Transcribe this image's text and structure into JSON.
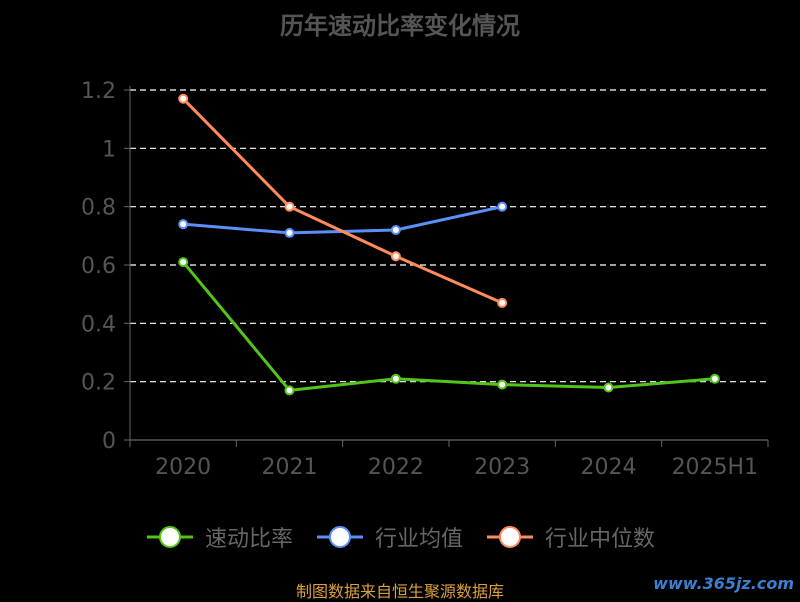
{
  "title": "历年速动比率变化情况",
  "source": "制图数据来自恒生聚源数据库",
  "watermark": "www.365jz.com",
  "chart_data": {
    "type": "line",
    "x": [
      "2020",
      "2021",
      "2022",
      "2023",
      "2024",
      "2025H1"
    ],
    "ylim": [
      0,
      1.2
    ],
    "yticks": [
      "0",
      "0.2",
      "0.4",
      "0.6",
      "0.8",
      "1",
      "1.2"
    ],
    "grid": true,
    "legend_position": "bottom",
    "series": [
      {
        "name": "速动比率",
        "color": "#52c41a",
        "values": [
          0.61,
          0.17,
          0.21,
          0.19,
          0.18,
          0.21
        ]
      },
      {
        "name": "行业均值",
        "color": "#5b8ff9",
        "values": [
          0.74,
          0.71,
          0.72,
          0.8,
          null,
          null
        ]
      },
      {
        "name": "行业中位数",
        "color": "#ff8c5a",
        "values": [
          1.17,
          0.8,
          0.63,
          0.47,
          null,
          null
        ]
      }
    ]
  }
}
